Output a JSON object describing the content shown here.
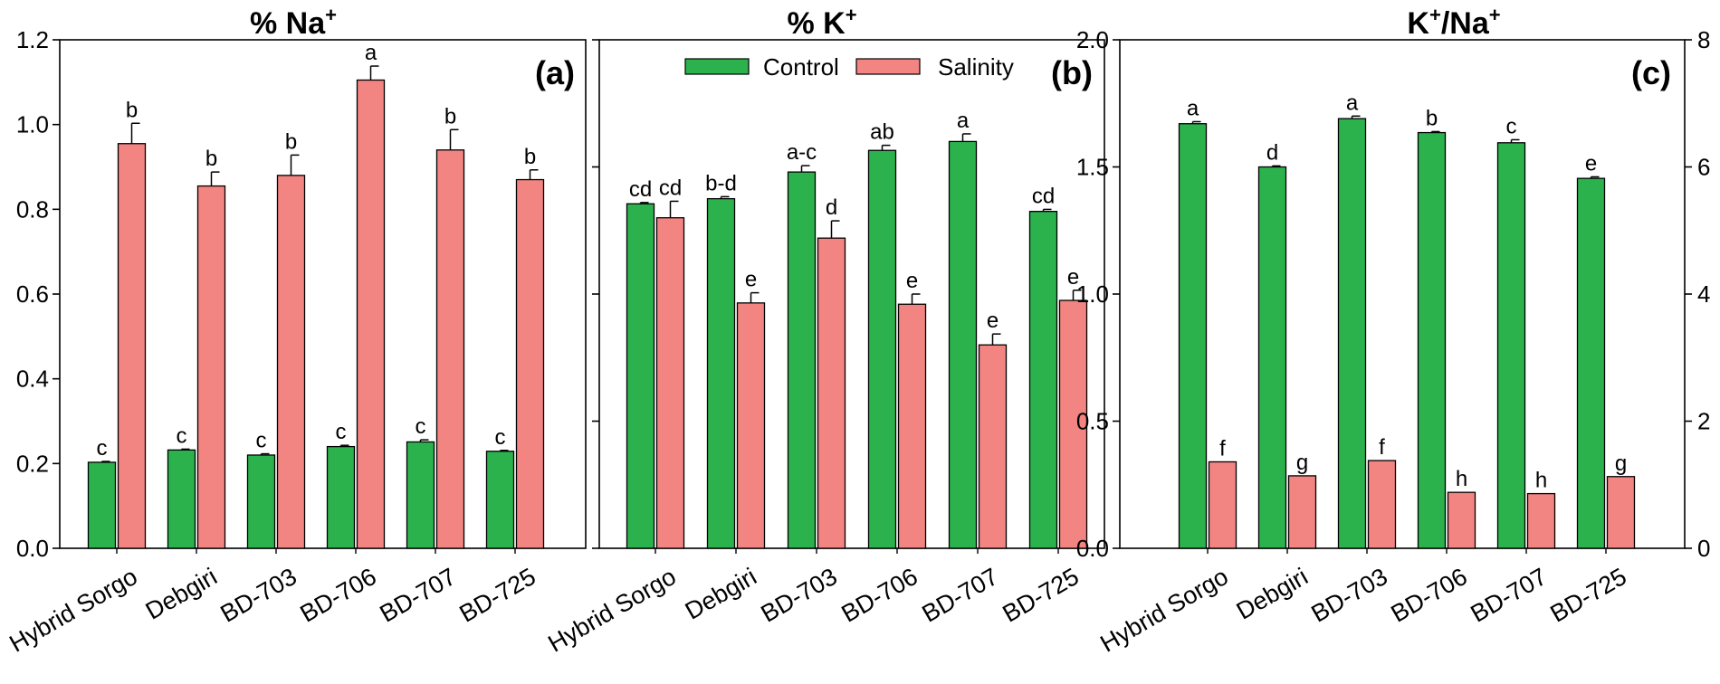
{
  "colors": {
    "control": "#2bb24c",
    "salinity": "#f28482",
    "axis": "#000000"
  },
  "legend": [
    {
      "name": "Control",
      "key": "control"
    },
    {
      "name": "Salinity",
      "key": "salinity"
    }
  ],
  "chart_data": [
    {
      "type": "bar",
      "id": "a",
      "title": "% Na",
      "title_sup": "+",
      "panel_label": "(a)",
      "categories": [
        "Hybrid Sorgo",
        "Debgiri",
        "BD-703",
        "BD-706",
        "BD-707",
        "BD-725"
      ],
      "ylim": [
        0,
        1.2
      ],
      "yticks": [
        0,
        0.2,
        0.4,
        0.6,
        0.8,
        1.0,
        1.2
      ],
      "ytick_labels": [
        "0.0",
        "0.2",
        "0.4",
        "0.6",
        "0.8",
        "1.0",
        "1.2"
      ],
      "series": [
        {
          "name": "Control",
          "key": "control",
          "values": [
            0.203,
            0.232,
            0.22,
            0.24,
            0.251,
            0.229
          ],
          "errors": [
            0.002,
            0.002,
            0.003,
            0.003,
            0.005,
            0.002
          ],
          "letters": [
            "c",
            "c",
            "c",
            "c",
            "c",
            "c"
          ]
        },
        {
          "name": "Salinity",
          "key": "salinity",
          "values": [
            0.955,
            0.855,
            0.88,
            1.105,
            0.94,
            0.87
          ],
          "errors": [
            0.048,
            0.033,
            0.048,
            0.033,
            0.048,
            0.023
          ],
          "letters": [
            "b",
            "b",
            "b",
            "a",
            "b",
            "b"
          ]
        }
      ]
    },
    {
      "type": "bar",
      "id": "b",
      "title": "% K",
      "title_sup": "+",
      "panel_label": "(b)",
      "categories": [
        "Hybrid Sorgo",
        "Debgiri",
        "BD-703",
        "BD-706",
        "BD-707",
        "BD-725"
      ],
      "ylim": [
        0,
        2.0
      ],
      "yticks": [
        0,
        0.5,
        1.0,
        1.5,
        2.0
      ],
      "ytick_labels": [
        "",
        "",
        "",
        "",
        ""
      ],
      "series": [
        {
          "name": "Control",
          "key": "control",
          "values": [
            1.355,
            1.375,
            1.48,
            1.565,
            1.6,
            1.325
          ],
          "errors": [
            0.005,
            0.008,
            0.025,
            0.02,
            0.03,
            0.008
          ],
          "letters": [
            "cd",
            "b-d",
            "a-c",
            "ab",
            "a",
            "cd"
          ]
        },
        {
          "name": "Salinity",
          "key": "salinity",
          "values": [
            1.3,
            0.965,
            1.22,
            0.96,
            0.8,
            0.975
          ],
          "errors": [
            0.065,
            0.04,
            0.068,
            0.04,
            0.043,
            0.04
          ],
          "letters": [
            "cd",
            "e",
            "d",
            "e",
            "e",
            "e"
          ]
        }
      ]
    },
    {
      "type": "bar",
      "id": "c",
      "title": "K",
      "title_sup": "+",
      "title_mid": "/Na",
      "title_sup2": "+",
      "panel_label": "(c)",
      "categories": [
        "Hybrid Sorgo",
        "Debgiri",
        "BD-703",
        "BD-706",
        "BD-707",
        "BD-725"
      ],
      "ylim": [
        0,
        2.0
      ],
      "yticks": [
        0,
        0.5,
        1.0,
        1.5,
        2.0
      ],
      "ytick_labels": [
        "0.0",
        "0.5",
        "1.0",
        "1.5",
        "2.0"
      ],
      "y2lim": [
        0,
        8
      ],
      "y2ticks": [
        0,
        2,
        4,
        6,
        8
      ],
      "y2tick_labels": [
        "0",
        "2",
        "4",
        "6",
        "8"
      ],
      "series": [
        {
          "name": "Control",
          "key": "control",
          "values": [
            1.67,
            1.5,
            1.69,
            1.635,
            1.595,
            1.455
          ],
          "errors": [
            0.008,
            0.004,
            0.01,
            0.004,
            0.012,
            0.006
          ],
          "letters": [
            "a",
            "d",
            "a",
            "b",
            "c",
            "e"
          ]
        },
        {
          "name": "Salinity",
          "key": "salinity",
          "values": [
            0.34,
            0.285,
            0.345,
            0.22,
            0.215,
            0.282
          ],
          "errors": [
            0,
            0,
            0,
            0,
            0,
            0
          ],
          "letters": [
            "f",
            "g",
            "f",
            "h",
            "h",
            "g"
          ]
        }
      ]
    }
  ]
}
